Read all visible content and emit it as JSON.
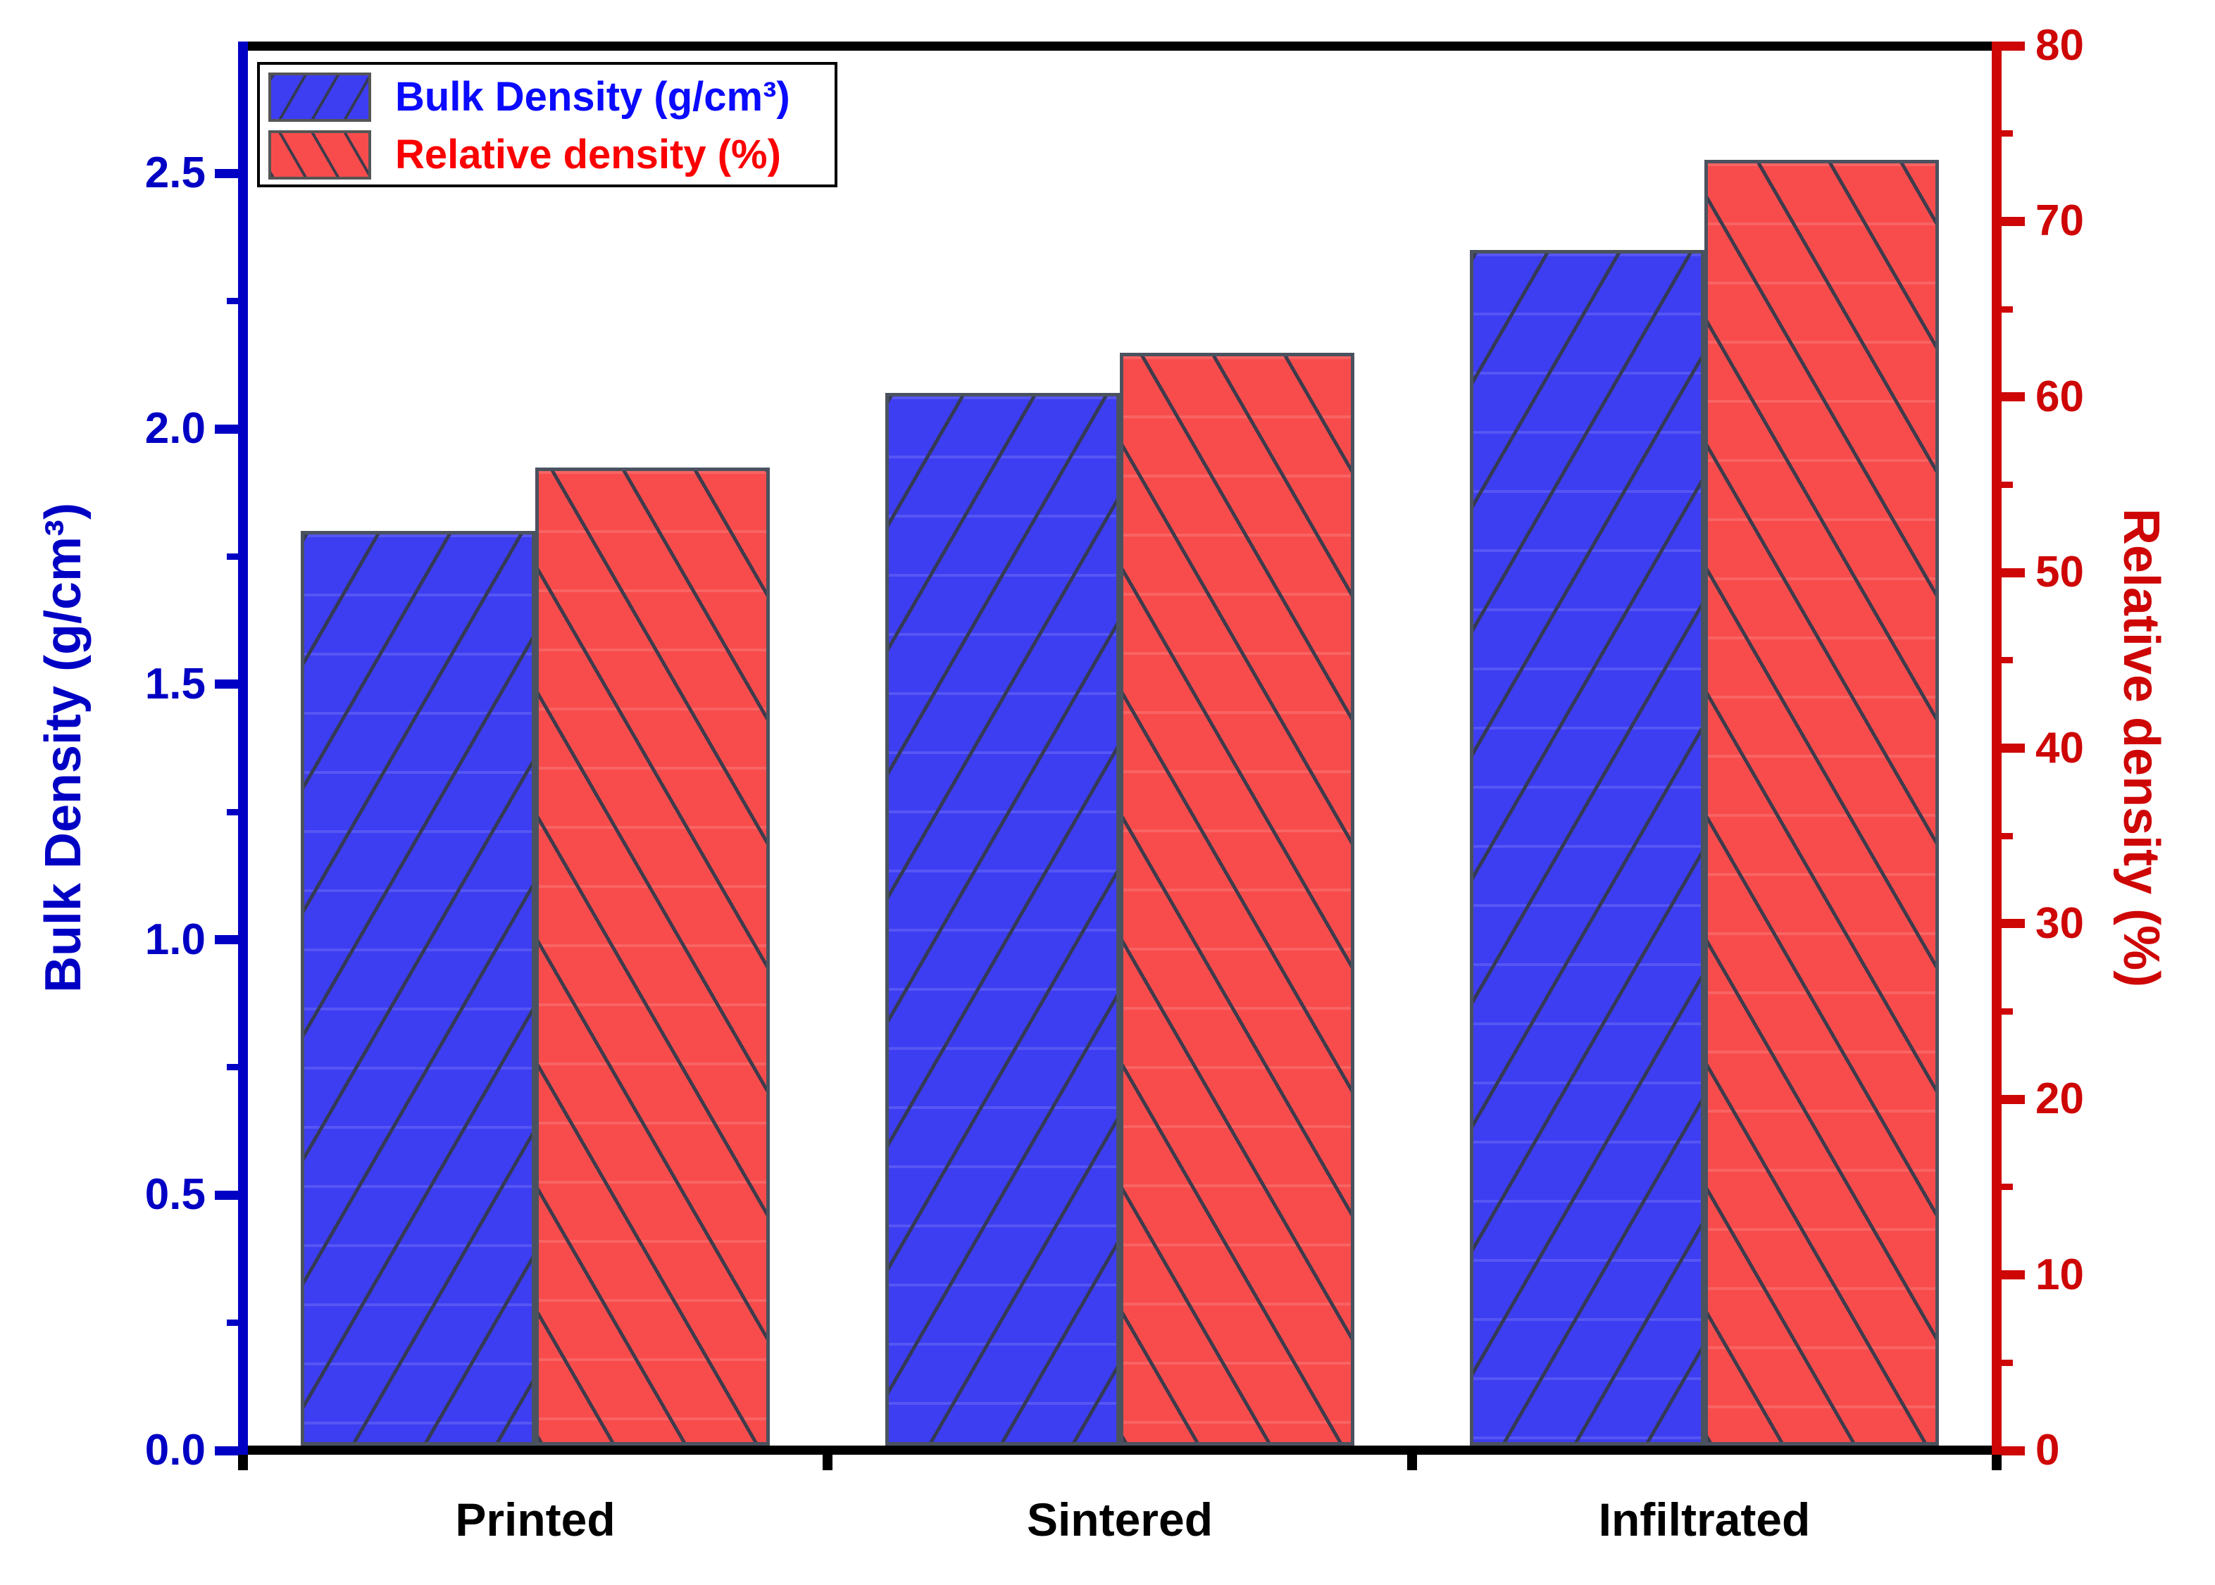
{
  "chart_data": {
    "type": "bar",
    "title": "",
    "categories": [
      "Printed",
      "Sintered",
      "Infiltrated"
    ],
    "series": [
      {
        "name": "Bulk Density (g/cm³)",
        "axis": "left",
        "values": [
          1.8,
          2.07,
          2.35
        ],
        "bar_color": "#3D3DF2",
        "hatch": "/",
        "label_color": "#0A0AFF"
      },
      {
        "name": "Relative density (%)",
        "axis": "right",
        "values": [
          56,
          62.5,
          73.5
        ],
        "bar_color": "#F84C4C",
        "hatch": "\\",
        "label_color": "#FB0000"
      }
    ],
    "left_axis": {
      "label": "Bulk Density (g/cm³)",
      "min": 0,
      "max": 2.75,
      "major_step": 0.5,
      "minor_step": 0.25,
      "tick_labels": [
        "0.0",
        "0.5",
        "1.0",
        "1.5",
        "2.0",
        "2.5"
      ],
      "color": "#0000C4"
    },
    "right_axis": {
      "label": "Relative density (%)",
      "min": 0,
      "max": 80,
      "major_step": 10,
      "minor_step": 5,
      "tick_labels": [
        "0",
        "10",
        "20",
        "30",
        "40",
        "50",
        "60",
        "70",
        "80"
      ],
      "color": "#CE0606"
    },
    "x_axis": {
      "color": "#000000"
    },
    "grid": false,
    "legend_position": "top-left"
  }
}
